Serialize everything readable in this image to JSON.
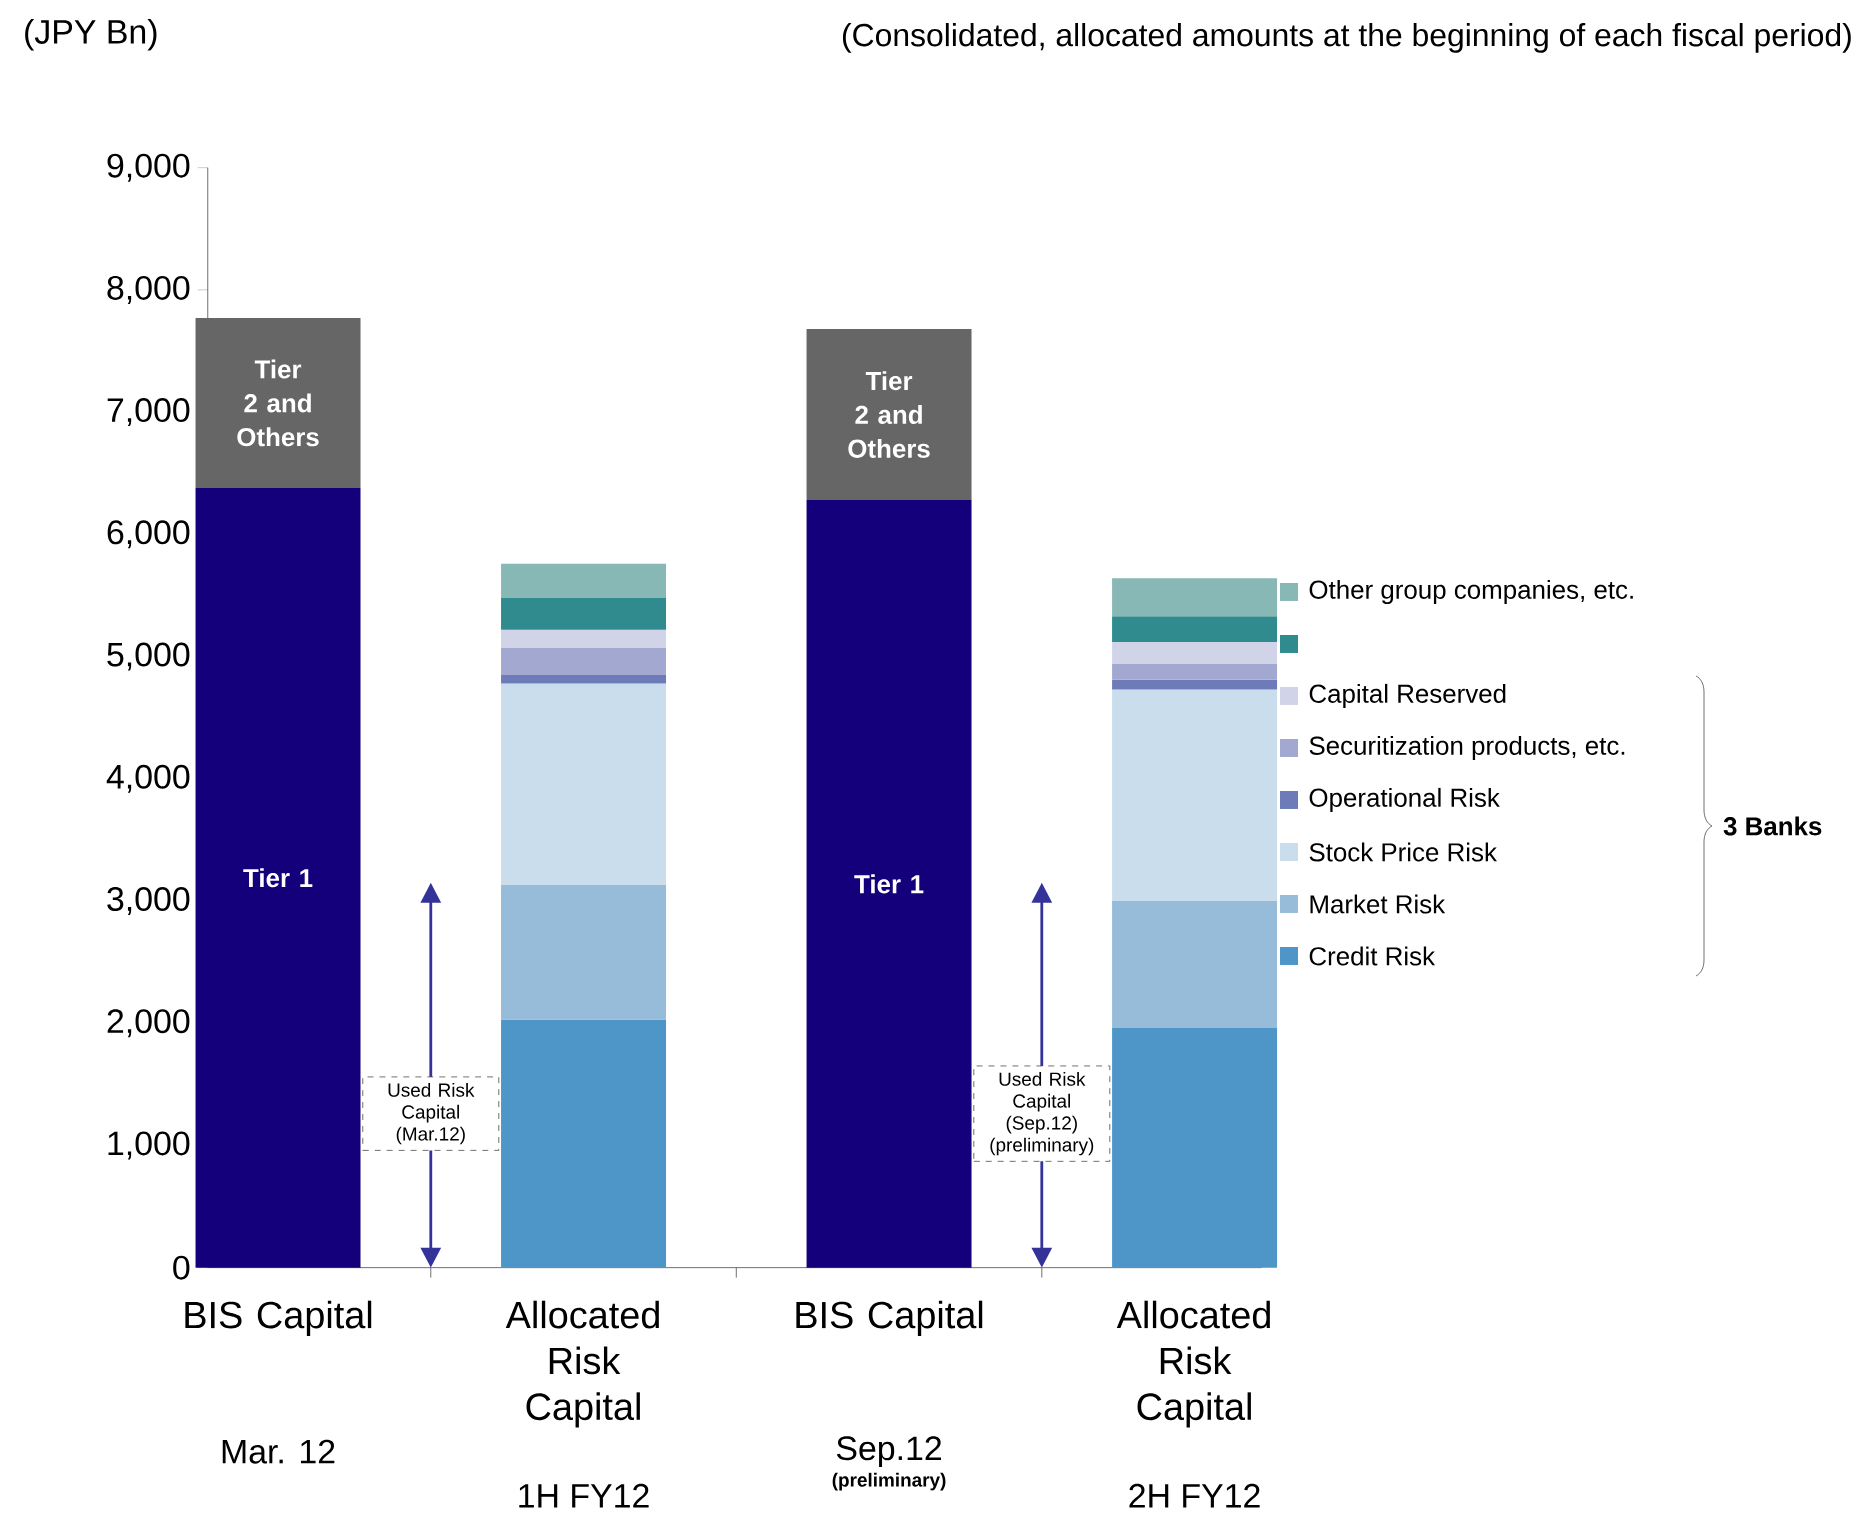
{
  "chart_data": {
    "type": "bar",
    "stacked": true,
    "subtitle": "(Consolidated, allocated amounts at the beginning of each fiscal period)",
    "categories": [
      "BIS Capital",
      "Allocated Risk Capital",
      "BIS Capital",
      "Allocated Risk Capital"
    ],
    "ylim": [
      0,
      9000
    ],
    "yticks": [
      {
        "value": 0,
        "label": "0"
      },
      {
        "value": 1000,
        "label": "1,000"
      },
      {
        "value": 2000,
        "label": "2,000"
      },
      {
        "value": 3000,
        "label": "3,000"
      },
      {
        "value": 4000,
        "label": "4,000"
      },
      {
        "value": 5000,
        "label": "5,000"
      },
      {
        "value": 6000,
        "label": "6,000"
      },
      {
        "value": 7000,
        "label": "7,000"
      },
      {
        "value": 8000,
        "label": "8,000"
      },
      {
        "value": 9000,
        "label": "9,000"
      }
    ],
    "legend": "right",
    "series": [
      {
        "name": "Tier 1",
        "color": "#14007a",
        "values": [
          6380,
          null,
          6280,
          null
        ]
      },
      {
        "name": "Tier 2 and Others",
        "color": "#666666",
        "values": [
          1390,
          null,
          1400,
          null
        ]
      },
      {
        "name": "Credit Risk",
        "color": "#4f96c8",
        "values": [
          null,
          2030,
          null,
          1960
        ]
      },
      {
        "name": "Market Risk",
        "color": "#96bcd9",
        "values": [
          null,
          1100,
          null,
          1040
        ]
      },
      {
        "name": "Stock Price Risk",
        "color": "#c9ddec",
        "values": [
          null,
          1650,
          null,
          1730
        ]
      },
      {
        "name": "Operational Risk",
        "color": "#6d7bb8",
        "values": [
          null,
          70,
          null,
          80
        ]
      },
      {
        "name": "Securitization products, etc.",
        "color": "#a3a8d0",
        "values": [
          null,
          220,
          null,
          130
        ]
      },
      {
        "name": "Capital Reserved",
        "color": "#d1d3e8",
        "values": [
          null,
          150,
          null,
          180
        ]
      },
      {
        "color": "#2f8b8d",
        "values": [
          null,
          260,
          null,
          210
        ]
      },
      {
        "name": "Other group companies, etc.",
        "color": "#88b8b6",
        "values": [
          null,
          280,
          null,
          310
        ]
      }
    ],
    "annotations": [
      "Mar. 12",
      "1H FY12",
      "Sep.12",
      "(preliminary)",
      "2H FY12",
      "Used Risk Capital (Mar.12)",
      "Used Risk Capital (Sep.12) (preliminary)",
      "3 Banks",
      "(JPY Bn)"
    ]
  }
}
